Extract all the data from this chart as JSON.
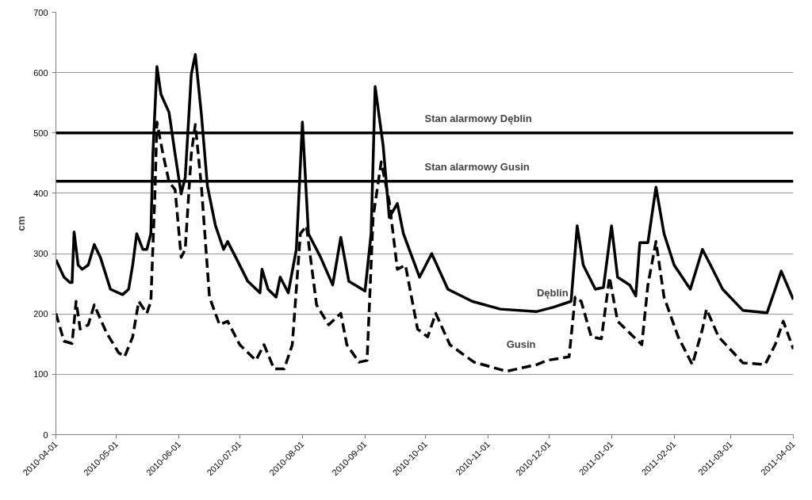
{
  "chart_data": {
    "type": "line",
    "ylabel": "cm",
    "xlim": [
      "2010-04-01",
      "2011-04-01"
    ],
    "xticks": [
      "2010-04-01",
      "2010-05-01",
      "2010-06-01",
      "2010-07-01",
      "2010-08-01",
      "2010-09-01",
      "2010-10-01",
      "2010-11-01",
      "2010-12-01",
      "2011-01-01",
      "2011-02-01",
      "2011-03-01",
      "2011-04-01"
    ],
    "ylim": [
      0,
      700
    ],
    "yticks": [
      0,
      100,
      200,
      300,
      400,
      500,
      600,
      700
    ],
    "grid": "y",
    "ref_lines": [
      {
        "axis": "y",
        "value": 500,
        "label": "Stan alarmowy Dęblin",
        "color": "#000000"
      },
      {
        "axis": "y",
        "value": 420,
        "label": "Stan alarmowy Gusin",
        "color": "#000000"
      }
    ],
    "series": [
      {
        "name": "Dęblin",
        "color": "#000000",
        "line_style": "solid",
        "x": [
          "2010-04-01",
          "2010-04-05",
          "2010-04-08",
          "2010-04-09",
          "2010-04-10",
          "2010-04-12",
          "2010-04-14",
          "2010-04-17",
          "2010-04-20",
          "2010-04-23",
          "2010-04-28",
          "2010-05-04",
          "2010-05-07",
          "2010-05-09",
          "2010-05-11",
          "2010-05-14",
          "2010-05-16",
          "2010-05-18",
          "2010-05-19",
          "2010-05-21",
          "2010-05-23",
          "2010-05-27",
          "2010-05-30",
          "2010-06-02",
          "2010-06-04",
          "2010-06-07",
          "2010-06-09",
          "2010-06-12",
          "2010-06-15",
          "2010-06-19",
          "2010-06-23",
          "2010-06-25",
          "2010-06-29",
          "2010-07-05",
          "2010-07-11",
          "2010-07-12",
          "2010-07-15",
          "2010-07-19",
          "2010-07-21",
          "2010-07-25",
          "2010-07-29",
          "2010-08-01",
          "2010-08-04",
          "2010-08-10",
          "2010-08-16",
          "2010-08-20",
          "2010-08-24",
          "2010-09-01",
          "2010-09-04",
          "2010-09-06",
          "2010-09-10",
          "2010-09-13",
          "2010-09-17",
          "2010-09-20",
          "2010-09-28",
          "2010-10-04",
          "2010-10-12",
          "2010-10-24",
          "2010-11-07",
          "2010-11-25",
          "2010-12-03",
          "2010-12-12",
          "2010-12-15",
          "2010-12-18",
          "2010-12-24",
          "2010-12-28",
          "2011-01-01",
          "2011-01-04",
          "2011-01-10",
          "2011-01-13",
          "2011-01-15",
          "2011-01-19",
          "2011-01-23",
          "2011-01-27",
          "2011-02-01",
          "2011-02-09",
          "2011-02-15",
          "2011-02-19",
          "2011-02-25",
          "2011-03-07",
          "2011-03-19",
          "2011-03-23",
          "2011-03-26",
          "2011-04-01"
        ],
        "values": [
          290,
          261,
          252,
          252,
          336,
          281,
          274,
          281,
          315,
          294,
          241,
          232,
          241,
          281,
          333,
          307,
          307,
          333,
          465,
          610,
          564,
          534,
          465,
          399,
          426,
          597,
          630,
          531,
          412,
          346,
          307,
          320,
          294,
          254,
          235,
          274,
          241,
          228,
          261,
          235,
          307,
          518,
          333,
          294,
          248,
          327,
          254,
          238,
          333,
          577,
          478,
          360,
          383,
          333,
          261,
          300,
          241,
          221,
          208,
          204,
          211,
          221,
          346,
          281,
          241,
          244,
          346,
          261,
          248,
          230,
          318,
          318,
          410,
          333,
          281,
          241,
          307,
          281,
          241,
          206,
          202,
          241,
          271,
          224
        ]
      },
      {
        "name": "Gusin",
        "color": "#000000",
        "line_style": "dashed",
        "x": [
          "2010-04-01",
          "2010-04-05",
          "2010-04-09",
          "2010-04-11",
          "2010-04-13",
          "2010-04-17",
          "2010-04-20",
          "2010-04-26",
          "2010-05-02",
          "2010-05-05",
          "2010-05-09",
          "2010-05-12",
          "2010-05-16",
          "2010-05-18",
          "2010-05-20",
          "2010-05-21",
          "2010-05-24",
          "2010-05-27",
          "2010-05-30",
          "2010-06-02",
          "2010-06-04",
          "2010-06-07",
          "2010-06-09",
          "2010-06-12",
          "2010-06-16",
          "2010-06-21",
          "2010-06-25",
          "2010-07-01",
          "2010-07-09",
          "2010-07-13",
          "2010-07-18",
          "2010-07-23",
          "2010-07-27",
          "2010-07-31",
          "2010-08-03",
          "2010-08-08",
          "2010-08-14",
          "2010-08-20",
          "2010-08-23",
          "2010-08-29",
          "2010-09-02",
          "2010-09-05",
          "2010-09-09",
          "2010-09-13",
          "2010-09-17",
          "2010-09-21",
          "2010-09-27",
          "2010-10-02",
          "2010-10-06",
          "2010-10-13",
          "2010-10-25",
          "2010-11-10",
          "2010-11-25",
          "2010-11-30",
          "2010-12-11",
          "2010-12-14",
          "2010-12-17",
          "2010-12-22",
          "2010-12-27",
          "2010-12-31",
          "2011-01-04",
          "2011-01-12",
          "2011-01-16",
          "2011-01-19",
          "2011-01-23",
          "2011-01-27",
          "2011-02-03",
          "2011-02-10",
          "2011-02-15",
          "2011-02-17",
          "2011-02-23",
          "2011-03-07",
          "2011-03-18",
          "2011-03-23",
          "2011-03-27",
          "2011-04-01"
        ],
        "values": [
          201,
          155,
          151,
          221,
          175,
          182,
          215,
          169,
          136,
          129,
          162,
          221,
          201,
          221,
          399,
          518,
          465,
          419,
          406,
          294,
          307,
          465,
          514,
          412,
          228,
          182,
          188,
          149,
          123,
          149,
          109,
          109,
          149,
          333,
          346,
          215,
          182,
          201,
          149,
          120,
          123,
          360,
          452,
          386,
          274,
          281,
          175,
          162,
          201,
          149,
          120,
          105,
          116,
          123,
          129,
          228,
          221,
          162,
          159,
          261,
          188,
          162,
          149,
          248,
          320,
          228,
          162,
          116,
          175,
          208,
          162,
          119,
          116,
          149,
          188,
          142
        ]
      }
    ]
  }
}
